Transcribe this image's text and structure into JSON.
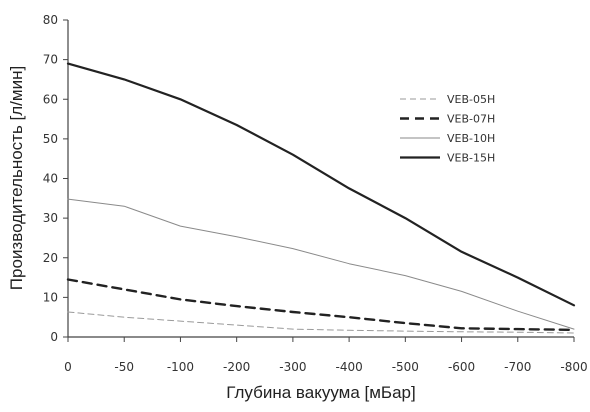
{
  "chart_data": {
    "type": "line",
    "xlabel": "Глубина вакуума [мБар]",
    "ylabel": "Производительность [л/мин]",
    "x": [
      0,
      -50,
      -100,
      -200,
      -300,
      -400,
      -500,
      -600,
      -700,
      -800
    ],
    "x_tick_labels": [
      "0",
      "-50",
      "-100",
      "-200",
      "-300",
      "-400",
      "-500",
      "-600",
      "-700",
      "-800"
    ],
    "y_ticks": [
      0,
      10,
      20,
      30,
      40,
      50,
      60,
      70,
      80
    ],
    "ylim": [
      0,
      80
    ],
    "grid": false,
    "legend_position": "top-right",
    "series": [
      {
        "name": "VEB-05H",
        "color": "#9a9a9a",
        "style": "dashed-thin",
        "values": [
          6.3,
          5.0,
          4.0,
          3.0,
          2.0,
          1.7,
          1.5,
          1.3,
          1.2,
          1.0
        ]
      },
      {
        "name": "VEB-07H",
        "color": "#222222",
        "style": "dashed-thick",
        "values": [
          14.5,
          12.0,
          9.5,
          7.8,
          6.3,
          5.0,
          3.5,
          2.2,
          2.0,
          1.8
        ]
      },
      {
        "name": "VEB-10H",
        "color": "#8a8a8a",
        "style": "solid-thin",
        "values": [
          34.8,
          33.0,
          28.0,
          25.3,
          22.3,
          18.5,
          15.5,
          11.5,
          6.5,
          2.0
        ]
      },
      {
        "name": "VEB-15H",
        "color": "#222222",
        "style": "solid-thick",
        "values": [
          69.0,
          65.0,
          60.0,
          53.5,
          46.0,
          37.5,
          30.0,
          21.5,
          15.0,
          8.0
        ]
      }
    ]
  }
}
